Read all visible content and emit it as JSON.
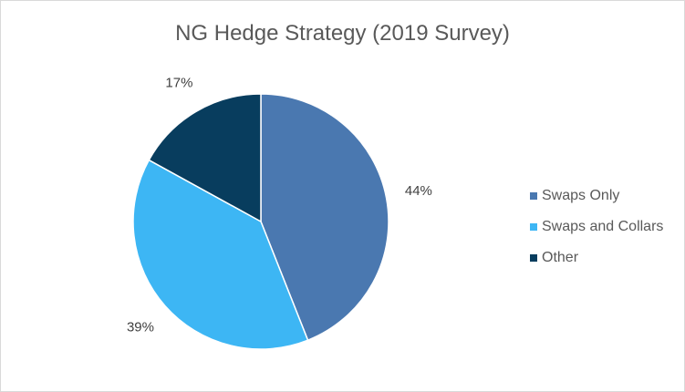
{
  "chart_data": {
    "type": "pie",
    "title": "NG Hedge Strategy (2019 Survey)",
    "categories": [
      "Swaps Only",
      "Swaps and Collars",
      "Other"
    ],
    "values": [
      44,
      39,
      17
    ],
    "data_labels": [
      "44%",
      "39%",
      "17%"
    ],
    "colors": [
      "#4a78b0",
      "#3db6f4",
      "#083d5e"
    ],
    "legend": "right"
  }
}
